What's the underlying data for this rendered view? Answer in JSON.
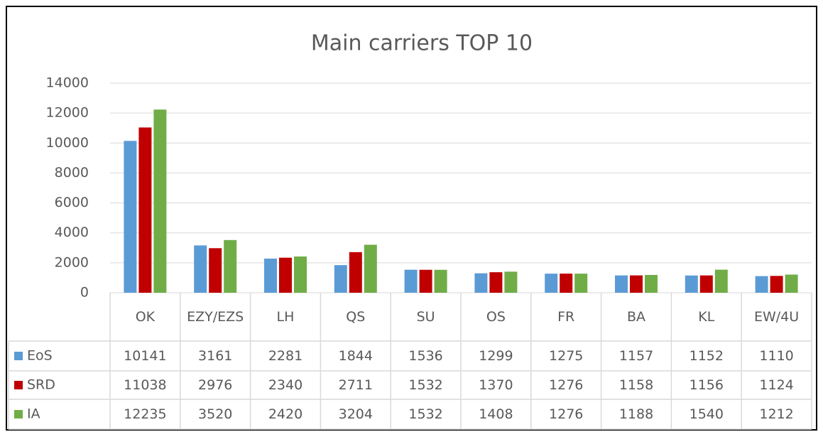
{
  "chart_data": {
    "type": "bar",
    "title": "Main carriers TOP 10",
    "categories": [
      "OK",
      "EZY/EZS",
      "LH",
      "QS",
      "SU",
      "OS",
      "FR",
      "BA",
      "KL",
      "EW/4U"
    ],
    "series": [
      {
        "name": "EoS",
        "color": "#5b9bd5",
        "values": [
          10141,
          3161,
          2281,
          1844,
          1536,
          1299,
          1275,
          1157,
          1152,
          1110
        ]
      },
      {
        "name": "SRD",
        "color": "#c00000",
        "values": [
          11038,
          2976,
          2340,
          2711,
          1532,
          1370,
          1276,
          1158,
          1156,
          1124
        ]
      },
      {
        "name": "IA",
        "color": "#70ad47",
        "values": [
          12235,
          3520,
          2420,
          3204,
          1532,
          1408,
          1276,
          1188,
          1540,
          1212
        ]
      }
    ],
    "ylim": [
      0,
      14000
    ],
    "yticks": [
      0,
      2000,
      4000,
      6000,
      8000,
      10000,
      12000,
      14000
    ],
    "grid": true,
    "data_table": true
  }
}
